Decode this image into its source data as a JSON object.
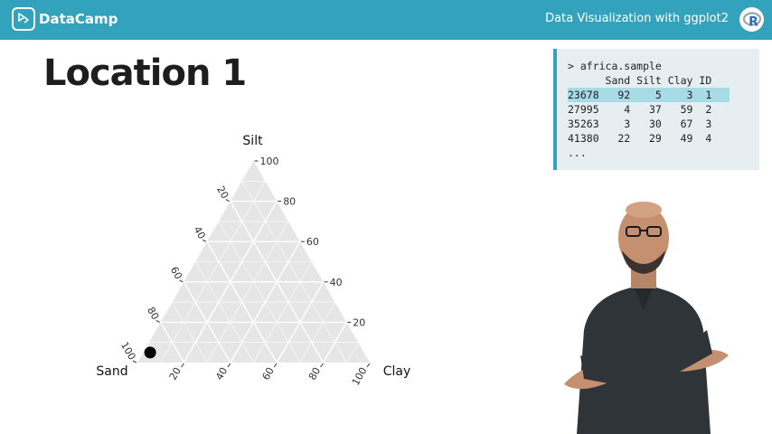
{
  "header": {
    "brand": "DataCamp",
    "course_title": "Data Visualization with ggplot2",
    "r_logo": "R"
  },
  "slide": {
    "title": "Location 1"
  },
  "console": {
    "lines": [
      "> africa.sample",
      "      Sand Silt Clay ID",
      "23678   92    5    3  1",
      "27995    4   37   59  2",
      "35263    3   30   67  3",
      "41380   22   29   49  4",
      "..."
    ],
    "highlight_line": 2
  },
  "chart_data": {
    "type": "scatter",
    "subtype": "ternary",
    "axes": {
      "top": "Silt",
      "left": "Sand",
      "right": "Clay"
    },
    "ticks": [
      "20",
      "40",
      "60",
      "80",
      "100"
    ],
    "points": [
      {
        "id": 1,
        "sand": 92,
        "silt": 5,
        "clay": 3
      }
    ],
    "grid": true,
    "colors": {
      "grid_bg": "#e6e6e6",
      "grid_line": "#ffffff",
      "point": "#000000"
    }
  },
  "colors": {
    "accent": "#33a3bd",
    "console_bg": "#e7eef2",
    "highlight": "#a9dbe6"
  },
  "icons": {
    "brand": "datacamp-logo-icon",
    "r": "r-logo-icon"
  }
}
